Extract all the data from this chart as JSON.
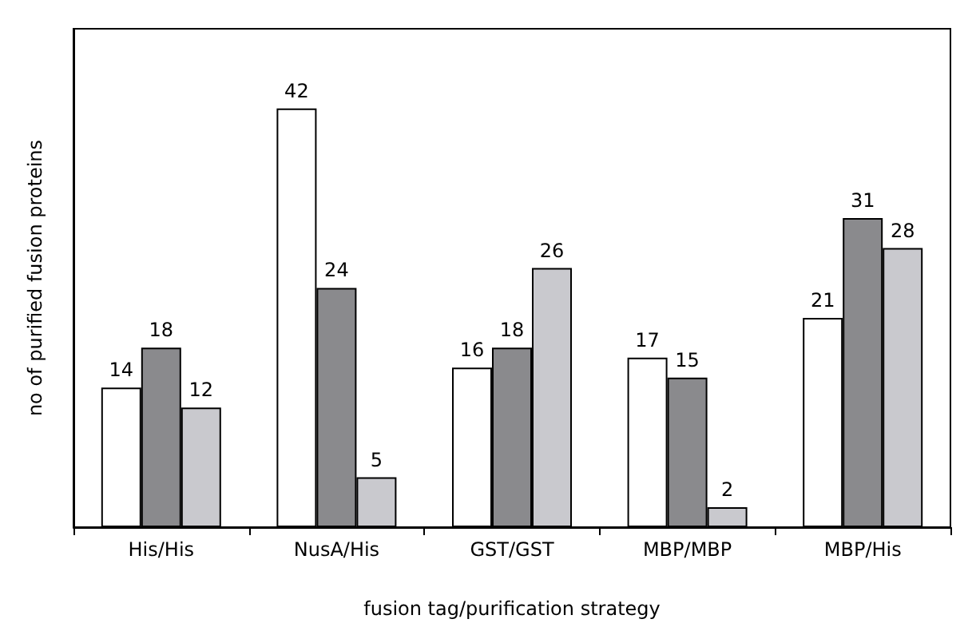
{
  "chart_data": {
    "type": "bar",
    "xlabel": "fusion tag/purification strategy",
    "ylabel": "no of purified fusion proteins",
    "categories": [
      "His/His",
      "NusA/His",
      "GST/GST",
      "MBP/MBP",
      "MBP/His"
    ],
    "series": [
      {
        "color": "#ffffff",
        "values": [
          14,
          42,
          16,
          17,
          21
        ]
      },
      {
        "color": "#8a8a8d",
        "values": [
          18,
          24,
          18,
          15,
          31
        ]
      },
      {
        "color": "#c9c9ce",
        "values": [
          12,
          5,
          26,
          2,
          28
        ]
      }
    ],
    "data_labels": true,
    "grid": false,
    "tick_labels": "x"
  }
}
